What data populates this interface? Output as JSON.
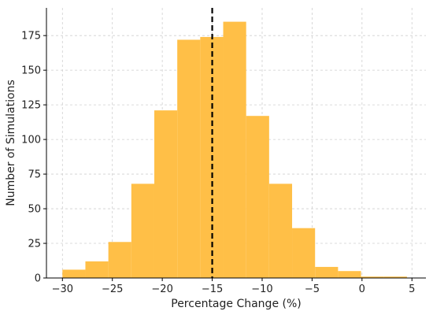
{
  "chart_data": {
    "type": "bar",
    "xlabel": "Percentage Change (%)",
    "ylabel": "Number of Simulations",
    "xlim": [
      -31.6,
      6.4
    ],
    "ylim": [
      0,
      195
    ],
    "x_ticks": [
      -30,
      -25,
      -20,
      -15,
      -10,
      -5,
      0,
      5
    ],
    "x_tick_labels": [
      "−30",
      "−25",
      "−20",
      "−15",
      "−10",
      "−5",
      "0",
      "5"
    ],
    "y_ticks": [
      0,
      25,
      50,
      75,
      100,
      125,
      150,
      175
    ],
    "y_tick_labels": [
      "0",
      "25",
      "50",
      "75",
      "100",
      "125",
      "150",
      "175"
    ],
    "grid": true,
    "bar_color": "#FFBF47",
    "bins": [
      {
        "start": -30.0,
        "end": -27.7,
        "count": 6
      },
      {
        "start": -27.7,
        "end": -25.4,
        "count": 12
      },
      {
        "start": -25.4,
        "end": -23.1,
        "count": 26
      },
      {
        "start": -23.1,
        "end": -20.8,
        "count": 68
      },
      {
        "start": -20.8,
        "end": -18.5,
        "count": 121
      },
      {
        "start": -18.5,
        "end": -16.2,
        "count": 172
      },
      {
        "start": -16.2,
        "end": -13.9,
        "count": 174
      },
      {
        "start": -13.9,
        "end": -11.6,
        "count": 185
      },
      {
        "start": -11.6,
        "end": -9.3,
        "count": 117
      },
      {
        "start": -9.3,
        "end": -7.0,
        "count": 68
      },
      {
        "start": -7.0,
        "end": -4.7,
        "count": 36
      },
      {
        "start": -4.7,
        "end": -2.4,
        "count": 8
      },
      {
        "start": -2.4,
        "end": -0.1,
        "count": 5
      },
      {
        "start": -0.1,
        "end": 2.2,
        "count": 1
      },
      {
        "start": 2.2,
        "end": 4.5,
        "count": 1
      }
    ],
    "reference_line": {
      "x": -15,
      "style": "dashed",
      "color": "#000000"
    }
  }
}
